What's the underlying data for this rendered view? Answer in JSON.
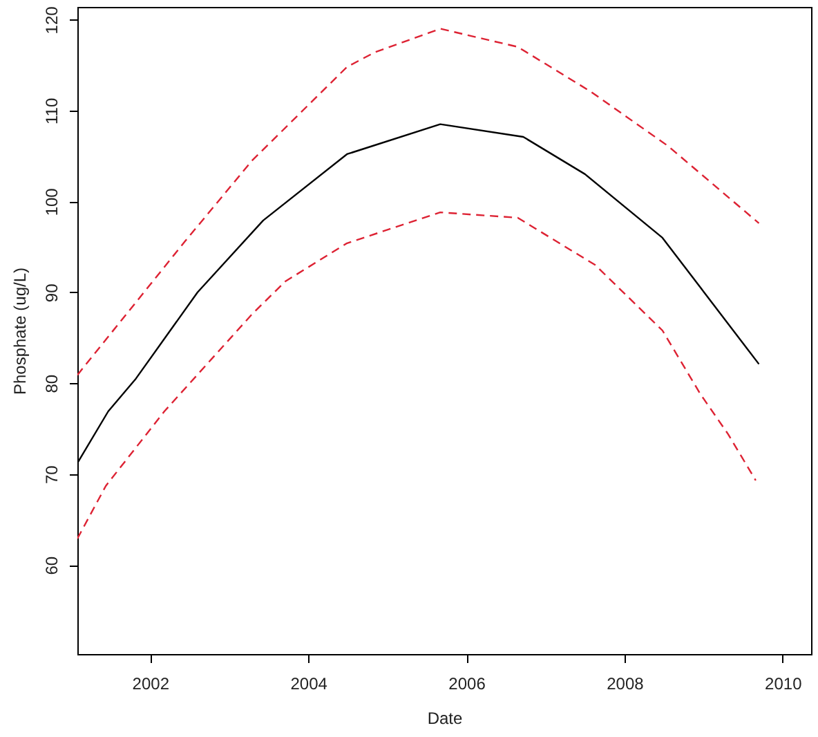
{
  "chart_data": {
    "type": "line",
    "xlabel": "Date",
    "ylabel": "Phosphate (ug/L)",
    "xlim": [
      2001.08,
      2010.36
    ],
    "ylim": [
      50.2,
      121.4
    ],
    "xticks": [
      2002,
      2004,
      2006,
      2008,
      2010
    ],
    "yticks": [
      60,
      70,
      80,
      90,
      100,
      110,
      120
    ],
    "grid": false,
    "series": [
      {
        "color": "#000000",
        "line_style": "solid",
        "x": [
          2001.08,
          2001.47,
          2001.82,
          2002.6,
          2003.43,
          2004.49,
          2005.67,
          2006.72,
          2007.5,
          2008.48,
          2009.7
        ],
        "values": [
          71.2,
          76.9,
          80.5,
          90.0,
          97.9,
          105.2,
          108.5,
          107.1,
          103.0,
          96.0,
          82.1
        ]
      },
      {
        "color": "#dd2233",
        "line_style": "dashed",
        "x": [
          2001.08,
          2002.45,
          2003.29,
          2004.49,
          2004.84,
          2005.67,
          2006.65,
          2007.57,
          2008.55,
          2009.7
        ],
        "values": [
          80.9,
          95.7,
          104.5,
          114.8,
          116.4,
          119.0,
          117.0,
          112.1,
          106.1,
          97.6
        ]
      },
      {
        "color": "#dd2233",
        "line_style": "dashed",
        "x": [
          2001.08,
          2001.44,
          2002.18,
          2003.29,
          2003.71,
          2004.49,
          2005.67,
          2006.65,
          2007.63,
          2008.48,
          2008.96,
          2009.31,
          2009.66
        ],
        "values": [
          62.9,
          68.7,
          76.9,
          87.6,
          91.2,
          95.4,
          98.8,
          98.2,
          93.0,
          85.8,
          78.8,
          74.4,
          69.3
        ]
      }
    ]
  }
}
